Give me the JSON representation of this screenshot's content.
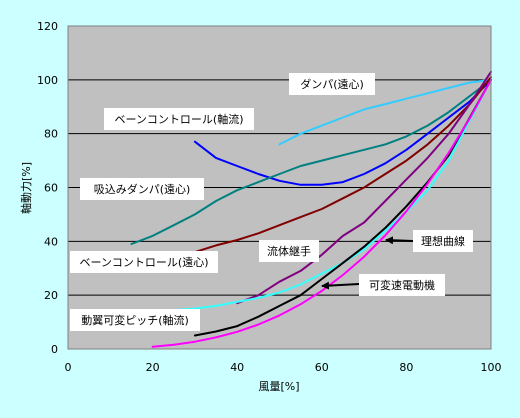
{
  "colors": {
    "background": "#ccffff",
    "plot_area": "#c0c0c0",
    "grid": "#000000",
    "annotation_box": "#ffffff"
  },
  "chart_data": {
    "type": "line",
    "title": "",
    "xlabel": "風量[%]",
    "ylabel": "軸動力[%]",
    "xlim": [
      0,
      100
    ],
    "ylim": [
      0,
      120
    ],
    "xticks": [
      0,
      20,
      40,
      60,
      80,
      100
    ],
    "yticks": [
      0,
      20,
      40,
      60,
      80,
      100,
      120
    ],
    "grid": "horizontal",
    "legend": "none",
    "series": [
      {
        "name": "ダンパ(遠心)",
        "color": "#33ccff",
        "x": [
          50,
          55,
          60,
          65,
          70,
          75,
          80,
          85,
          90,
          95,
          100
        ],
        "y": [
          76,
          80,
          83,
          86,
          89,
          91,
          93,
          95,
          97,
          99,
          100
        ]
      },
      {
        "name": "ベーンコントロール(軸流)",
        "color": "#0000ff",
        "x": [
          30,
          35,
          40,
          45,
          50,
          55,
          60,
          65,
          70,
          75,
          80,
          85,
          90,
          95,
          100
        ],
        "y": [
          77,
          71,
          68,
          65,
          62.5,
          61,
          61,
          62,
          65,
          69,
          74,
          80,
          86,
          92,
          100
        ]
      },
      {
        "name": "吸込みダンパ(遠心)",
        "color": "#008080",
        "x": [
          15,
          20,
          25,
          30,
          35,
          40,
          45,
          50,
          55,
          60,
          65,
          70,
          75,
          80,
          85,
          90,
          95,
          100
        ],
        "y": [
          39,
          42,
          46,
          50,
          55,
          59,
          62,
          65,
          68,
          70,
          72,
          74,
          76,
          79,
          83,
          88,
          94,
          100
        ]
      },
      {
        "name": "ベーンコントロール(遠心)",
        "color": "#800000",
        "x": [
          30,
          35,
          40,
          45,
          50,
          55,
          60,
          65,
          70,
          75,
          80,
          85,
          90,
          95,
          100
        ],
        "y": [
          36,
          38.5,
          40.5,
          43,
          46,
          49,
          52,
          56,
          60,
          65,
          70,
          76,
          83,
          91,
          101
        ]
      },
      {
        "name": "流体継手",
        "color": "#800080",
        "x": [
          40,
          45,
          50,
          55,
          60,
          65,
          70,
          75,
          80,
          85,
          90,
          95,
          100
        ],
        "y": [
          17,
          20,
          25,
          29,
          35,
          42,
          47,
          55,
          63,
          71,
          80,
          91,
          103
        ]
      },
      {
        "name": "動翼可変ピッチ(軸流)",
        "color": "#33ffff",
        "x": [
          20,
          25,
          30,
          35,
          40,
          45,
          50,
          55,
          60,
          65,
          70,
          75,
          80,
          85,
          90,
          95,
          100
        ],
        "y": [
          14,
          14.5,
          15,
          16,
          17.5,
          19,
          21,
          24,
          28,
          32,
          37,
          44,
          51,
          59,
          70,
          85,
          100
        ]
      },
      {
        "name": "可変速電動機",
        "color": "#000000",
        "x": [
          30,
          35,
          40,
          45,
          50,
          55,
          60,
          65,
          70,
          75,
          80,
          85,
          90,
          95,
          100
        ],
        "y": [
          5,
          6.5,
          8.5,
          12,
          16,
          20,
          26,
          32,
          38,
          45,
          53,
          62,
          72,
          86,
          100
        ]
      },
      {
        "name": "理想曲線",
        "color": "#ff00ff",
        "x": [
          20,
          25,
          30,
          35,
          40,
          45,
          50,
          55,
          60,
          65,
          70,
          75,
          80,
          85,
          90,
          95,
          100
        ],
        "y": [
          0.8,
          1.6,
          2.7,
          4.3,
          6.4,
          9.1,
          12.5,
          16.6,
          21.6,
          27.5,
          34.3,
          42.2,
          51.2,
          61.4,
          72.9,
          85.7,
          100
        ]
      }
    ],
    "annotations": [
      {
        "id": "damper-centrifugal",
        "text": "ダンパ(遠心)",
        "box": true
      },
      {
        "id": "vane-axial",
        "text": "ベーンコントロール(軸流)",
        "box": true
      },
      {
        "id": "inlet-damper-centrifugal",
        "text": "吸込みダンパ(遠心)",
        "box": true
      },
      {
        "id": "vane-centrifugal",
        "text": "ベーンコントロール(遠心)",
        "box": true
      },
      {
        "id": "fluid-coupling",
        "text": "流体継手",
        "box": true
      },
      {
        "id": "ideal-curve",
        "text": "理想曲線",
        "box": true
      },
      {
        "id": "variable-speed-motor",
        "text": "可変速電動機",
        "box": true
      },
      {
        "id": "blade-pitch-axial",
        "text": "動翼可変ピッチ(軸流)",
        "box": true
      }
    ]
  }
}
